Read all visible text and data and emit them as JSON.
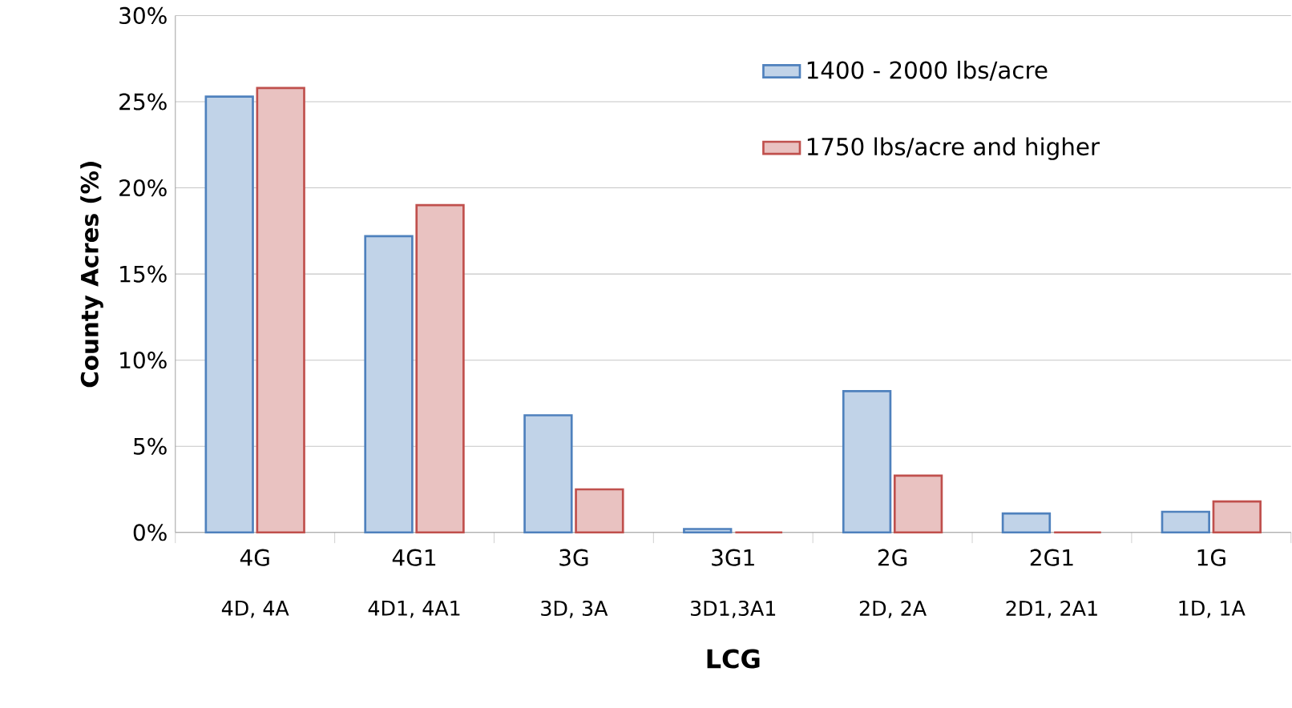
{
  "chart_data": {
    "type": "bar",
    "xlabel": "LCG",
    "ylabel": "County Acres (%)",
    "categories": [
      "4G",
      "4G1",
      "3G",
      "3G1",
      "2G",
      "2G1",
      "1G"
    ],
    "annotations": [
      "4D, 4A",
      "4D1, 4A1",
      "3D, 3A",
      "3D1,3A1",
      "2D, 2A",
      "2D1, 2A1",
      "1D, 1A"
    ],
    "series": [
      {
        "name": "1400 - 2000 lbs/acre",
        "color": "#4f81bd",
        "values": [
          25.3,
          17.2,
          6.8,
          0.2,
          8.2,
          1.1,
          1.2
        ]
      },
      {
        "name": "1750 lbs/acre and higher",
        "color": "#c0504d",
        "values": [
          25.8,
          19.0,
          2.5,
          0,
          3.3,
          0,
          1.8
        ]
      }
    ],
    "ylim": [
      0,
      30
    ],
    "yticks": [
      {
        "value": 0,
        "label": "0%"
      },
      {
        "value": 5,
        "label": "5%"
      },
      {
        "value": 10,
        "label": "10%"
      },
      {
        "value": 15,
        "label": "15%"
      },
      {
        "value": 20,
        "label": "20%"
      },
      {
        "value": 25,
        "label": "25%"
      },
      {
        "value": 30,
        "label": "30%"
      }
    ],
    "grid": "y",
    "legend": "top right"
  }
}
